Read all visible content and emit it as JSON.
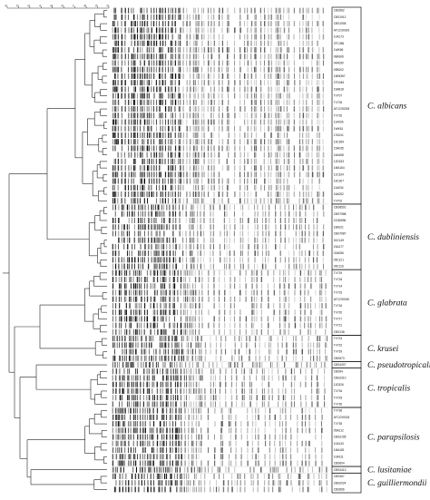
{
  "scale": {
    "ticks": [
      "5",
      "0",
      "5",
      "4",
      "8",
      "6",
      "7",
      "8",
      "9",
      "0"
    ]
  },
  "groups": [
    {
      "species": "C. albicans",
      "strains": [
        "CBS562",
        "CBS1912",
        "CBS1905",
        "ATCC90029",
        "10A173",
        "3TC286",
        "1WK66",
        "08A306",
        "04A090",
        "09B202",
        "1MW367",
        "2TD045",
        "16A818",
        "TV707",
        "TV726",
        "ATCC90028",
        "TV732",
        "11A006",
        "1WK61",
        "1TA241",
        "19C399",
        "15A035",
        "16A458",
        "12D333",
        "1MA164",
        "11C334",
        "16C307",
        "11A034",
        "16A252",
        "TV702"
      ]
    },
    {
      "species": "C. dubliniensis",
      "strains": [
        "CBS8501",
        "CBS7988",
        "CD36596",
        "18A221",
        "CBS7987",
        "30C149",
        "23A177",
        "02A056",
        "05C121",
        "05C116"
      ]
    },
    {
      "species": "C. glabrata",
      "strains": [
        "TV719",
        "TV718",
        "TV714",
        "TV715",
        "ATCC90030",
        "TV716",
        "TV720",
        "TV717",
        "TV721",
        "CBS138"
      ]
    },
    {
      "species": "C. krusei",
      "strains": [
        "TV723",
        "TV722",
        "TV729",
        "CBS573"
      ]
    },
    {
      "species": "C. pseudotropicalis",
      "strains": [
        "CBS4307"
      ]
    },
    {
      "species": "C. tropicalis",
      "strains": [
        "CBS94",
        "CBS2310",
        "11D326",
        "TV734",
        "TV733",
        "TV730"
      ]
    },
    {
      "species": "C. parapsilosis",
      "strains": [
        "TV736",
        "ATCC90018",
        "TV735",
        "05A212",
        "CBS2195",
        "10A133",
        "1MA181",
        "10A311",
        "CBS604"
      ]
    },
    {
      "species": "C. lusitaniae",
      "strains": [
        "CBS4413"
      ]
    },
    {
      "species": "C. guilliermondii",
      "strains": [
        "CBS467",
        "CBS2024",
        "CBS566"
      ]
    }
  ]
}
